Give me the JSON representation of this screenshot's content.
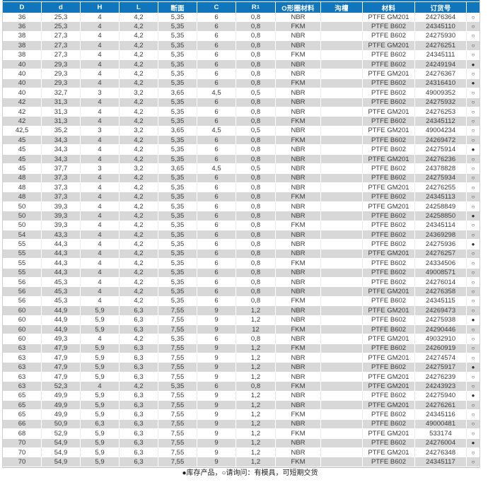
{
  "colors": {
    "header_bg": "#0f75bc",
    "row_alt_bg": "#d8d8d8",
    "text": "#3a3a3a"
  },
  "table": {
    "columns": [
      {
        "id": "D",
        "label": "D"
      },
      {
        "id": "d",
        "label": "d"
      },
      {
        "id": "H",
        "label": "H"
      },
      {
        "id": "L",
        "label": "L"
      },
      {
        "id": "duanmian",
        "label": "断面"
      },
      {
        "id": "C",
        "label": "C"
      },
      {
        "id": "R1",
        "label": "R₁"
      },
      {
        "id": "oring-material",
        "label": "O形圈材料"
      },
      {
        "id": "goucao",
        "label": "沟槽"
      },
      {
        "id": "material",
        "label": "材料"
      },
      {
        "id": "order-number",
        "label": "订货号"
      },
      {
        "id": "status",
        "label": ""
      }
    ],
    "rows": [
      [
        "36",
        "25,3",
        "4",
        "4,2",
        "5,35",
        "6",
        "0,8",
        "NBR",
        "",
        "PTFE GM201",
        "24276364",
        "○"
      ],
      [
        "36",
        "25,3",
        "4",
        "4,2",
        "5,35",
        "6",
        "0,8",
        "FKM",
        "",
        "PTFE B602",
        "24345110",
        "○"
      ],
      [
        "38",
        "27,3",
        "4",
        "4,2",
        "5,35",
        "6",
        "0,8",
        "NBR",
        "",
        "PTFE B602",
        "24275930",
        "○"
      ],
      [
        "38",
        "27,3",
        "4",
        "4,2",
        "5,35",
        "6",
        "0,8",
        "NBR",
        "",
        "PTFE GM201",
        "24276251",
        "○"
      ],
      [
        "38",
        "27,3",
        "4",
        "4,2",
        "5,35",
        "6",
        "0,8",
        "FKM",
        "",
        "PTFE B602",
        "24345111",
        "○"
      ],
      [
        "40",
        "29,3",
        "4",
        "4,2",
        "5,35",
        "6",
        "0,8",
        "NBR",
        "",
        "PTFE B602",
        "24249194",
        "●"
      ],
      [
        "40",
        "29,3",
        "4",
        "4,2",
        "5,35",
        "6",
        "0,8",
        "NBR",
        "",
        "PTFE GM201",
        "24276367",
        "○"
      ],
      [
        "40",
        "29,3",
        "4",
        "4,2",
        "5,35",
        "6",
        "0,8",
        "FKM",
        "",
        "PTFE B602",
        "24316410",
        "●"
      ],
      [
        "40",
        "32,7",
        "3",
        "3,2",
        "3,65",
        "4,5",
        "0,5",
        "NBR",
        "",
        "PTFE B602",
        "49009352",
        "○"
      ],
      [
        "42",
        "31,3",
        "4",
        "4,2",
        "5,35",
        "6",
        "0,8",
        "NBR",
        "",
        "PTFE B602",
        "24275932",
        "○"
      ],
      [
        "42",
        "31,3",
        "4",
        "4,2",
        "5,35",
        "6",
        "0,8",
        "NBR",
        "",
        "PTFE GM201",
        "24276253",
        "○"
      ],
      [
        "42",
        "31,3",
        "4",
        "4,2",
        "5,35",
        "6",
        "0,8",
        "FKM",
        "",
        "PTFE B602",
        "24345112",
        "○"
      ],
      [
        "42,5",
        "35,2",
        "3",
        "3,2",
        "3,65",
        "4,5",
        "0,5",
        "NBR",
        "",
        "PTFE GM201",
        "49004234",
        "○"
      ],
      [
        "45",
        "34,3",
        "4",
        "4,2",
        "5,35",
        "6",
        "0,8",
        "FKM",
        "",
        "PTFE B602",
        "24269472",
        "○"
      ],
      [
        "45",
        "34,3",
        "4",
        "4,2",
        "5,35",
        "6",
        "0,8",
        "NBR",
        "",
        "PTFE B602",
        "24275914",
        "●"
      ],
      [
        "45",
        "34,3",
        "4",
        "4,2",
        "5,35",
        "6",
        "0,8",
        "NBR",
        "",
        "PTFE GM201",
        "24276236",
        "○"
      ],
      [
        "45",
        "37,7",
        "3",
        "3,2",
        "3,65",
        "4,5",
        "0,5",
        "NBR",
        "",
        "PTFE B602",
        "24378828",
        "○"
      ],
      [
        "48",
        "37,3",
        "4",
        "4,2",
        "5,35",
        "6",
        "0,8",
        "NBR",
        "",
        "PTFE B602",
        "24275934",
        "○"
      ],
      [
        "48",
        "37,3",
        "4",
        "4,2",
        "5,35",
        "6",
        "0,8",
        "NBR",
        "",
        "PTFE GM201",
        "24276255",
        "○"
      ],
      [
        "48",
        "37,3",
        "4",
        "4,2",
        "5,35",
        "6",
        "0,8",
        "FKM",
        "",
        "PTFE B602",
        "24345113",
        "○"
      ],
      [
        "50",
        "39,3",
        "4",
        "4,2",
        "5,35",
        "6",
        "0,8",
        "NBR",
        "",
        "PTFE GM201",
        "24258849",
        "○"
      ],
      [
        "50",
        "39,3",
        "4",
        "4,2",
        "5,35",
        "6",
        "0,8",
        "NBR",
        "",
        "PTFE B602",
        "24258850",
        "●"
      ],
      [
        "50",
        "39,3",
        "4",
        "4,2",
        "5,35",
        "6",
        "0,8",
        "FKM",
        "",
        "PTFE B602",
        "24345114",
        "○"
      ],
      [
        "54",
        "43,3",
        "4",
        "4,2",
        "5,35",
        "6",
        "0,8",
        "NBR",
        "",
        "PTFE B602",
        "24369298",
        "○"
      ],
      [
        "55",
        "44,3",
        "4",
        "4,2",
        "5,35",
        "6",
        "0,8",
        "NBR",
        "",
        "PTFE B602",
        "24275936",
        "●"
      ],
      [
        "55",
        "44,3",
        "4",
        "4,2",
        "5,35",
        "6",
        "0,8",
        "NBR",
        "",
        "PTFE GM201",
        "24276257",
        "○"
      ],
      [
        "55",
        "44,3",
        "4",
        "4,2",
        "5,35",
        "6",
        "0,8",
        "FKM",
        "",
        "PTFE B602",
        "24334506",
        "○"
      ],
      [
        "55",
        "44,3",
        "4",
        "4,2",
        "5,35",
        "6",
        "0,8",
        "NBR",
        "",
        "PTFE B602",
        "49008571",
        "○"
      ],
      [
        "56",
        "45,3",
        "4",
        "4,2",
        "5,35",
        "6",
        "0,8",
        "NBR",
        "",
        "PTFE B602",
        "24276014",
        "○"
      ],
      [
        "56",
        "45,3",
        "4",
        "4,2",
        "5,35",
        "6",
        "0,8",
        "NBR",
        "",
        "PTFE GM201",
        "24276358",
        "○"
      ],
      [
        "56",
        "45,3",
        "4",
        "4,2",
        "5,35",
        "6",
        "0,8",
        "FKM",
        "",
        "PTFE B602",
        "24345115",
        "○"
      ],
      [
        "60",
        "44,9",
        "5,9",
        "6,3",
        "7,55",
        "9",
        "1,2",
        "NBR",
        "",
        "PTFE GM201",
        "24269473",
        "○"
      ],
      [
        "60",
        "44,9",
        "5,9",
        "6,3",
        "7,55",
        "9",
        "1,2",
        "NBR",
        "",
        "PTFE B602",
        "24275938",
        "●"
      ],
      [
        "60",
        "44,9",
        "5,9",
        "6,3",
        "7,55",
        "9",
        "12",
        "FKM",
        "",
        "PTFE B602",
        "24290446",
        "○"
      ],
      [
        "60",
        "49,3",
        "4",
        "4,2",
        "5,35",
        "6",
        "0,8",
        "NBR",
        "",
        "PTFE GM201",
        "49032910",
        "○"
      ],
      [
        "63",
        "47,9",
        "5,9",
        "6,3",
        "7,55",
        "9",
        "1,2",
        "FKM",
        "",
        "PTFE B602",
        "24260919",
        "○"
      ],
      [
        "63",
        "47,9",
        "5,9",
        "6,3",
        "7,55",
        "9",
        "1,2",
        "NBR",
        "",
        "PTFE GM201",
        "24274574",
        "○"
      ],
      [
        "63",
        "47,9",
        "5,9",
        "6,3",
        "7,55",
        "9",
        "1,2",
        "NBR",
        "",
        "PTFE B602",
        "24275917",
        "●"
      ],
      [
        "63",
        "47,9",
        "5,9",
        "6,3",
        "7,55",
        "9",
        "1,2",
        "NBR",
        "",
        "PTFE GM201",
        "24276239",
        "○"
      ],
      [
        "63",
        "52,3",
        "4",
        "4,2",
        "5,35",
        "6",
        "0,8",
        "FKM",
        "",
        "PTFE GM201",
        "24243923",
        "○"
      ],
      [
        "65",
        "49,9",
        "5,9",
        "6,3",
        "7,55",
        "9",
        "1,2",
        "NBR",
        "",
        "PTFE B602",
        "24275940",
        "●"
      ],
      [
        "65",
        "49,9",
        "5,9",
        "6,3",
        "7,55",
        "9",
        "1,2",
        "NBR",
        "",
        "PTFE GM201",
        "24276261",
        "○"
      ],
      [
        "65",
        "49,9",
        "5,9",
        "6,3",
        "7,55",
        "9",
        "1,2",
        "FKM",
        "",
        "PTFE B602",
        "24345116",
        "○"
      ],
      [
        "66",
        "50,9",
        "6,3",
        "6,3",
        "7,55",
        "9",
        "1,2",
        "NBR",
        "",
        "PTFE B602",
        "49000481",
        "○"
      ],
      [
        "68",
        "52,9",
        "5,9",
        "6,3",
        "7,55",
        "9",
        "1,2",
        "FKM",
        "",
        "PTFE GM201",
        "533174",
        "○"
      ],
      [
        "70",
        "54,9",
        "5,9",
        "6,3",
        "7,55",
        "9",
        "1,2",
        "NBR",
        "",
        "PTFE B602",
        "24276004",
        "●"
      ],
      [
        "70",
        "54,9",
        "5,9",
        "6,3",
        "7,55",
        "9",
        "1,2",
        "NBR",
        "",
        "PTFE GM201",
        "24276348",
        "○"
      ],
      [
        "70",
        "54,9",
        "5,9",
        "6,3",
        "7,55",
        "9",
        "1,2",
        "FKM",
        "",
        "PTFE B602",
        "24345117",
        "○"
      ]
    ],
    "status_symbols": {
      "in_stock": "●",
      "inquiry": "○"
    }
  },
  "legend": {
    "text": "●库存产品，○请询问：有模具，可短期交货"
  }
}
